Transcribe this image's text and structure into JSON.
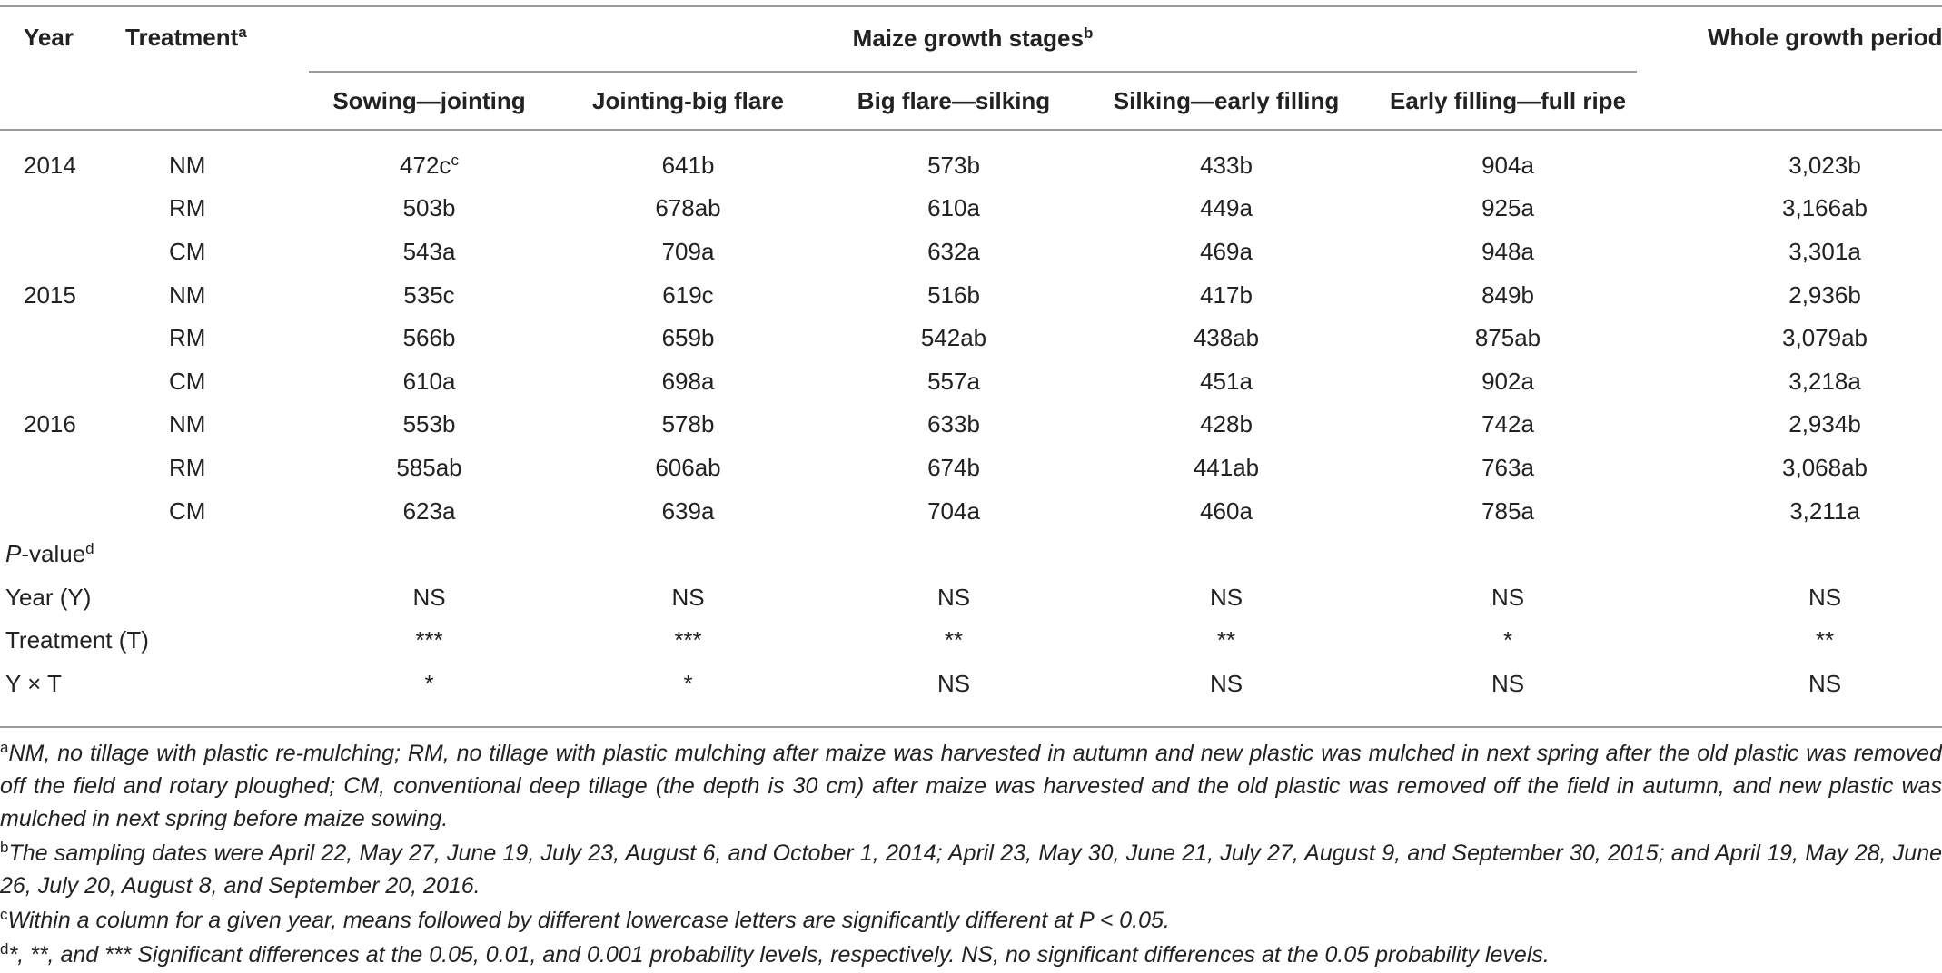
{
  "header": {
    "year": "Year",
    "treatment": "Treatment",
    "treatment_sup": "a",
    "group": "Maize growth stages",
    "group_sup": "b",
    "whole": "Whole growth period",
    "stages": [
      "Sowing—jointing",
      "Jointing-big flare",
      "Big flare—silking",
      "Silking—early filling",
      "Early filling—full ripe"
    ]
  },
  "rows": [
    {
      "year": "2014",
      "treatment": "NM",
      "values": [
        "472c",
        "641b",
        "573b",
        "433b",
        "904a",
        "3,023b"
      ],
      "first_sup": "c"
    },
    {
      "year": "",
      "treatment": "RM",
      "values": [
        "503b",
        "678ab",
        "610a",
        "449a",
        "925a",
        "3,166ab"
      ]
    },
    {
      "year": "",
      "treatment": "CM",
      "values": [
        "543a",
        "709a",
        "632a",
        "469a",
        "948a",
        "3,301a"
      ]
    },
    {
      "year": "2015",
      "treatment": "NM",
      "values": [
        "535c",
        "619c",
        "516b",
        "417b",
        "849b",
        "2,936b"
      ]
    },
    {
      "year": "",
      "treatment": "RM",
      "values": [
        "566b",
        "659b",
        "542ab",
        "438ab",
        "875ab",
        "3,079ab"
      ]
    },
    {
      "year": "",
      "treatment": "CM",
      "values": [
        "610a",
        "698a",
        "557a",
        "451a",
        "902a",
        "3,218a"
      ]
    },
    {
      "year": "2016",
      "treatment": "NM",
      "values": [
        "553b",
        "578b",
        "633b",
        "428b",
        "742a",
        "2,934b"
      ]
    },
    {
      "year": "",
      "treatment": "RM",
      "values": [
        "585ab",
        "606ab",
        "674b",
        "441ab",
        "763a",
        "3,068ab"
      ]
    },
    {
      "year": "",
      "treatment": "CM",
      "values": [
        "623a",
        "639a",
        "704a",
        "460a",
        "785a",
        "3,211a"
      ]
    }
  ],
  "pvalue": {
    "label_italic": "P",
    "label_rest": "-value",
    "sup": "d"
  },
  "stats": [
    {
      "label": "Year (Y)",
      "values": [
        "NS",
        "NS",
        "NS",
        "NS",
        "NS",
        "NS"
      ]
    },
    {
      "label": "Treatment (T)",
      "values": [
        "***",
        "***",
        "**",
        "**",
        "*",
        "**"
      ]
    },
    {
      "label": "Y × T",
      "values": [
        "*",
        "*",
        "NS",
        "NS",
        "NS",
        "NS"
      ]
    }
  ],
  "footnotes": [
    {
      "letter": "a",
      "text": "NM, no tillage with plastic re-mulching; RM, no tillage with plastic mulching after maize was harvested in autumn and new plastic was mulched in next spring after the old plastic was removed off the field and rotary ploughed; CM, conventional deep tillage (the depth is 30 cm) after maize was harvested and the old plastic was removed off the field in autumn, and new plastic was mulched in next spring before maize sowing."
    },
    {
      "letter": "b",
      "text": "The sampling dates were April 22, May 27, June 19, July 23, August 6, and October 1, 2014; April 23, May 30, June 21, July 27, August 9, and September 30, 2015; and April 19, May 28, June 26, July 20, August 8, and September 20, 2016."
    },
    {
      "letter": "c",
      "text": "Within a column for a given year, means followed by different lowercase letters are significantly different at P < 0.05."
    },
    {
      "letter": "d",
      "text": "*, **, and *** Significant differences at the 0.05, 0.01, and 0.001 probability levels, respectively. NS, no significant differences at the 0.05 probability levels."
    }
  ]
}
